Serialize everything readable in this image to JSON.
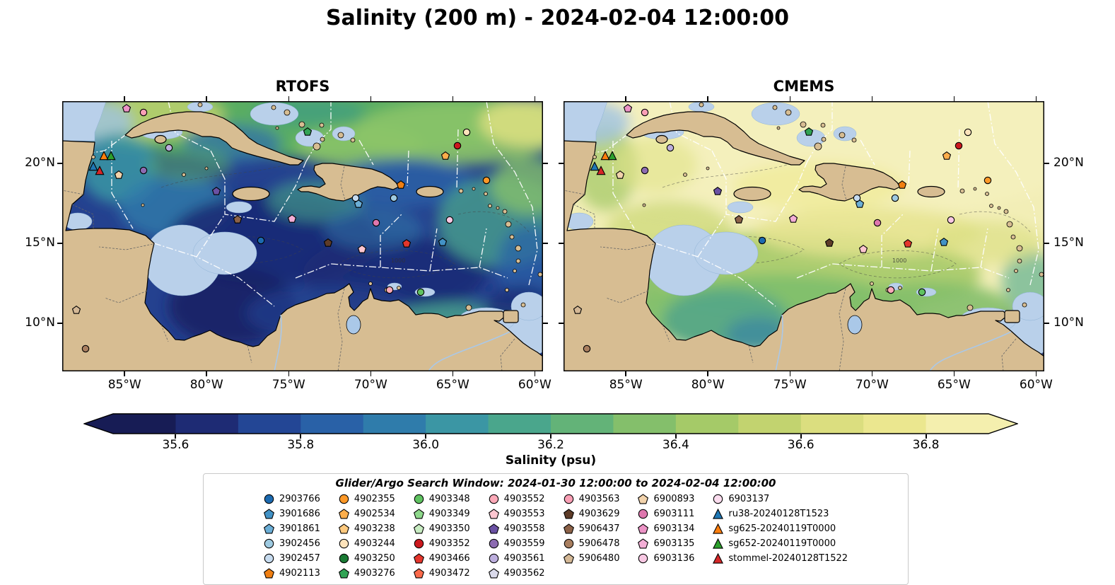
{
  "chart_data": {
    "type": "heatmap",
    "title": "Salinity (200 m) - 2024-02-04 12:00:00",
    "panels": [
      {
        "name": "RTOFS"
      },
      {
        "name": "CMEMS"
      }
    ],
    "axes": {
      "lon_min": -88.8,
      "lon_max": -59.5,
      "lat_min": 7.0,
      "lat_max": 23.9,
      "lon_ticks": [
        {
          "label": "85°W",
          "value": -85
        },
        {
          "label": "80°W",
          "value": -80
        },
        {
          "label": "75°W",
          "value": -75
        },
        {
          "label": "70°W",
          "value": -70
        },
        {
          "label": "65°W",
          "value": -65
        },
        {
          "label": "60°W",
          "value": -60
        }
      ],
      "lat_ticks": [
        {
          "label": "20°N",
          "value": 20
        },
        {
          "label": "15°N",
          "value": 15
        },
        {
          "label": "10°N",
          "value": 10
        }
      ]
    },
    "colorbar": {
      "label": "Salinity (psu)",
      "vmin": 35.5,
      "vmax": 36.9,
      "ticks": [
        {
          "label": "35.6",
          "value": 35.6
        },
        {
          "label": "35.8",
          "value": 35.8
        },
        {
          "label": "36.0",
          "value": 36.0
        },
        {
          "label": "36.2",
          "value": 36.2
        },
        {
          "label": "36.4",
          "value": 36.4
        },
        {
          "label": "36.6",
          "value": 36.6
        },
        {
          "label": "36.8",
          "value": 36.8
        }
      ],
      "colors": [
        "#171c55",
        "#1e2b74",
        "#234695",
        "#2961a7",
        "#2f7cab",
        "#3b96a4",
        "#4aa68c",
        "#63b378",
        "#84bf6b",
        "#a5ca68",
        "#c2d36f",
        "#dbde7f",
        "#ebe78f",
        "#f4efae"
      ]
    },
    "contour_labels": [
      "1000"
    ],
    "map_colors": {
      "land": "#d7bd92",
      "shelf_mask": "#b9d0ea",
      "deep_ocean": "#1b2a75",
      "pacific": "#141a52",
      "high_salinity": "#f2eeb6"
    },
    "legend": {
      "title": "Glider/Argo Search Window: 2024-01-30 12:00:00 to 2024-02-04 12:00:00",
      "columns": [
        [
          {
            "label": "2903766",
            "shape": "circle",
            "color": "#1c6ab0"
          },
          {
            "label": "3901686",
            "shape": "pentagon",
            "color": "#4292c6"
          },
          {
            "label": "3901861",
            "shape": "pentagon",
            "color": "#6baed6"
          },
          {
            "label": "3902456",
            "shape": "circle",
            "color": "#9ecae1"
          },
          {
            "label": "3902457",
            "shape": "circle",
            "color": "#c6dbef"
          },
          {
            "label": "4902113",
            "shape": "pentagon",
            "color": "#f07f12"
          }
        ],
        [
          {
            "label": "4902355",
            "shape": "circle",
            "color": "#fd9827"
          },
          {
            "label": "4902534",
            "shape": "pentagon",
            "color": "#fdae4b"
          },
          {
            "label": "4903238",
            "shape": "pentagon",
            "color": "#fdc97e"
          },
          {
            "label": "4903244",
            "shape": "circle",
            "color": "#fde3bb"
          },
          {
            "label": "4903250",
            "shape": "circle",
            "color": "#1a7a34"
          },
          {
            "label": "4903276",
            "shape": "pentagon",
            "color": "#31a354"
          }
        ],
        [
          {
            "label": "4903348",
            "shape": "circle",
            "color": "#5fc260"
          },
          {
            "label": "4903349",
            "shape": "pentagon",
            "color": "#8ed88b"
          },
          {
            "label": "4903350",
            "shape": "pentagon",
            "color": "#c8ecc2"
          },
          {
            "label": "4903352",
            "shape": "circle",
            "color": "#cb181d"
          },
          {
            "label": "4903466",
            "shape": "pentagon",
            "color": "#e4362c"
          },
          {
            "label": "4903472",
            "shape": "pentagon",
            "color": "#fb6a4a"
          }
        ],
        [
          {
            "label": "4903552",
            "shape": "circle",
            "color": "#fca9b8"
          },
          {
            "label": "4903553",
            "shape": "pentagon",
            "color": "#fdc6d0"
          },
          {
            "label": "4903558",
            "shape": "pentagon",
            "color": "#6a51a3"
          },
          {
            "label": "4903559",
            "shape": "circle",
            "color": "#8c6bb1"
          },
          {
            "label": "4903561",
            "shape": "circle",
            "color": "#bcaedd"
          },
          {
            "label": "4903562",
            "shape": "pentagon",
            "color": "#dadaeb"
          }
        ],
        [
          {
            "label": "4903563",
            "shape": "circle",
            "color": "#fa9fb5"
          },
          {
            "label": "4903629",
            "shape": "pentagon",
            "color": "#5e3c28"
          },
          {
            "label": "5906437",
            "shape": "pentagon",
            "color": "#8c6248"
          },
          {
            "label": "5906478",
            "shape": "circle",
            "color": "#a87e5f"
          },
          {
            "label": "5906480",
            "shape": "pentagon",
            "color": "#d4b896"
          }
        ],
        [
          {
            "label": "6900893",
            "shape": "pentagon",
            "color": "#f2d3ac"
          },
          {
            "label": "6903111",
            "shape": "circle",
            "color": "#de77ae"
          },
          {
            "label": "6903134",
            "shape": "pentagon",
            "color": "#ec93c6"
          },
          {
            "label": "6903135",
            "shape": "pentagon",
            "color": "#f3aed6"
          },
          {
            "label": "6903136",
            "shape": "circle",
            "color": "#f8c8e3"
          }
        ],
        [
          {
            "label": "6903137",
            "shape": "circle",
            "color": "#fbdcee"
          },
          {
            "label": "ru38-20240128T1523",
            "shape": "triangle",
            "color": "#1f77b4"
          },
          {
            "label": "sg625-20240119T0000",
            "shape": "triangle",
            "color": "#ff7f0e"
          },
          {
            "label": "sg652-20240119T0000",
            "shape": "triangle",
            "color": "#2ca02c"
          },
          {
            "label": "stommel-20240128T1522",
            "shape": "triangle",
            "color": "#d62728"
          }
        ]
      ]
    },
    "markers": [
      {
        "id": "6903134",
        "lon": -84.87,
        "lat": 23.45
      },
      {
        "id": "4903563",
        "lon": -83.85,
        "lat": 23.2
      },
      {
        "id": "4903561",
        "lon": -82.3,
        "lat": 21.0
      },
      {
        "id": "4903276",
        "lon": -73.85,
        "lat": 22.0
      },
      {
        "id": "ru38-20240128T1523",
        "lon": -86.9,
        "lat": 19.85
      },
      {
        "id": "sg625-20240119T0000",
        "lon": -86.25,
        "lat": 20.5
      },
      {
        "id": "sg652-20240119T0000",
        "lon": -85.85,
        "lat": 20.5
      },
      {
        "id": "stommel-20240128T1522",
        "lon": -86.5,
        "lat": 19.55
      },
      {
        "id": "6900893",
        "lon": -85.35,
        "lat": 19.3
      },
      {
        "id": "4903559",
        "lon": -83.85,
        "lat": 19.55
      },
      {
        "id": "4903558",
        "lon": -79.4,
        "lat": 18.3
      },
      {
        "id": "5906437",
        "lon": -78.1,
        "lat": 16.5
      },
      {
        "id": "6903135",
        "lon": -74.8,
        "lat": 16.55
      },
      {
        "id": "2903766",
        "lon": -76.7,
        "lat": 15.2
      },
      {
        "id": "3901861",
        "lon": -70.75,
        "lat": 17.5
      },
      {
        "id": "3902456",
        "lon": -68.6,
        "lat": 17.85
      },
      {
        "id": "3902457",
        "lon": -70.9,
        "lat": 17.85
      },
      {
        "id": "6903111",
        "lon": -69.65,
        "lat": 16.3
      },
      {
        "id": "6903136",
        "lon": -65.2,
        "lat": 16.45
      },
      {
        "id": "4903352",
        "lon": -64.7,
        "lat": 21.1
      },
      {
        "id": "4903244",
        "lon": -64.15,
        "lat": 21.95
      },
      {
        "id": "4902534",
        "lon": -65.45,
        "lat": 20.5
      },
      {
        "id": "4902355",
        "lon": -62.95,
        "lat": 18.95
      },
      {
        "id": "4902113",
        "lon": -68.15,
        "lat": 18.7
      },
      {
        "id": "3901686",
        "lon": -65.6,
        "lat": 15.1
      },
      {
        "id": "4903629",
        "lon": -72.6,
        "lat": 15.05
      },
      {
        "id": "4903466",
        "lon": -67.8,
        "lat": 15.0
      },
      {
        "id": "4903553",
        "lon": -70.55,
        "lat": 14.65
      },
      {
        "id": "4903552",
        "lon": -68.85,
        "lat": 12.1
      },
      {
        "id": "4903348",
        "lon": -66.95,
        "lat": 11.95
      },
      {
        "id": "5906480",
        "lon": -87.95,
        "lat": 10.85
      },
      {
        "id": "5906478",
        "lon": -87.4,
        "lat": 8.4
      }
    ]
  }
}
